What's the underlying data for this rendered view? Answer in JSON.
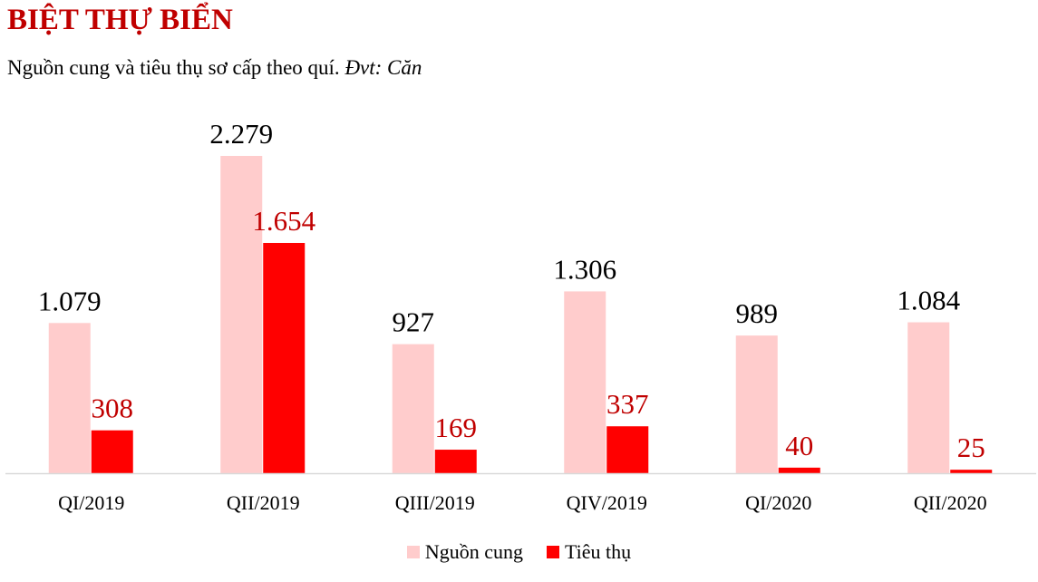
{
  "header": {
    "title": "BIỆT THỰ BIỂN",
    "subtitle": "Nguồn cung và tiêu thụ sơ cấp theo quí. ",
    "unit": "Đvt: Căn"
  },
  "colors": {
    "supply": "#ffcccc",
    "sales": "#ff0000",
    "supply_label": "#000000",
    "sales_label": "#c00000",
    "axis": "#d9d9d9"
  },
  "chart_data": {
    "type": "bar",
    "categories": [
      "QI/2019",
      "QII/2019",
      "QIII/2019",
      "QIV/2019",
      "QI/2020",
      "QII/2020"
    ],
    "series": [
      {
        "name": "Nguồn cung",
        "values": [
          1079,
          2279,
          927,
          1306,
          989,
          1084
        ],
        "labels": [
          "1.079",
          "2.279",
          "927",
          "1.306",
          "989",
          "1.084"
        ]
      },
      {
        "name": "Tiêu thụ",
        "values": [
          308,
          1654,
          169,
          337,
          40,
          25
        ],
        "labels": [
          "308",
          "1.654",
          "169",
          "337",
          "40",
          "25"
        ]
      }
    ],
    "ylim": [
      0,
      2279
    ],
    "grid": false,
    "legend": "bottom"
  }
}
